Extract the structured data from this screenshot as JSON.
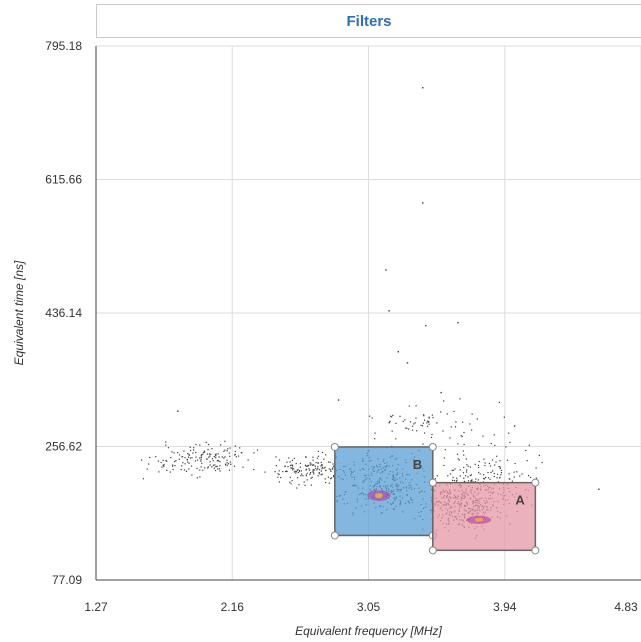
{
  "filters_button": {
    "label": "Filters"
  },
  "chart_data": {
    "type": "scatter",
    "xlabel": "Equivalent frequency [MHz]",
    "ylabel": "Equivalent time [ns]",
    "xlim": [
      1.27,
      4.83
    ],
    "ylim": [
      77.09,
      795.18
    ],
    "xticks": [
      "1.27",
      "2.16",
      "3.05",
      "3.94",
      "4.83"
    ],
    "yticks": [
      "77.09",
      "256.62",
      "436.14",
      "615.66",
      "795.18"
    ],
    "grid": true,
    "point_color": "#3a3a3a",
    "clusters": [
      {
        "x_range": [
          1.5,
          2.4
        ],
        "y_range": [
          210,
          270
        ],
        "count": 160
      },
      {
        "x_range": [
          2.3,
          3.0
        ],
        "y_range": [
          195,
          255
        ],
        "count": 150
      },
      {
        "x_range": [
          2.75,
          3.55
        ],
        "y_range": [
          150,
          265
        ],
        "count": 320
      },
      {
        "x_range": [
          3.3,
          4.0
        ],
        "y_range": [
          130,
          230
        ],
        "count": 340
      },
      {
        "x_range": [
          3.4,
          4.3
        ],
        "y_range": [
          140,
          290
        ],
        "count": 160
      },
      {
        "x_range": [
          2.8,
          4.1
        ],
        "y_range": [
          250,
          330
        ],
        "count": 70
      }
    ],
    "outliers": [
      {
        "x": 3.4,
        "y": 740
      },
      {
        "x": 3.4,
        "y": 585
      },
      {
        "x": 3.16,
        "y": 495
      },
      {
        "x": 3.18,
        "y": 440
      },
      {
        "x": 3.42,
        "y": 420
      },
      {
        "x": 3.63,
        "y": 424
      },
      {
        "x": 3.24,
        "y": 385
      },
      {
        "x": 3.3,
        "y": 370
      },
      {
        "x": 3.52,
        "y": 330
      },
      {
        "x": 2.85,
        "y": 320
      },
      {
        "x": 4.55,
        "y": 200
      },
      {
        "x": 4.0,
        "y": 285
      },
      {
        "x": 1.8,
        "y": 305
      }
    ],
    "regions": [
      {
        "label": "B",
        "x_range": [
          2.83,
          3.47
        ],
        "y_range": [
          137,
          256
        ],
        "color": "#5a9fd4"
      },
      {
        "label": "A",
        "x_range": [
          3.47,
          4.14
        ],
        "y_range": [
          117,
          208
        ],
        "color": "#e498a4"
      }
    ]
  }
}
